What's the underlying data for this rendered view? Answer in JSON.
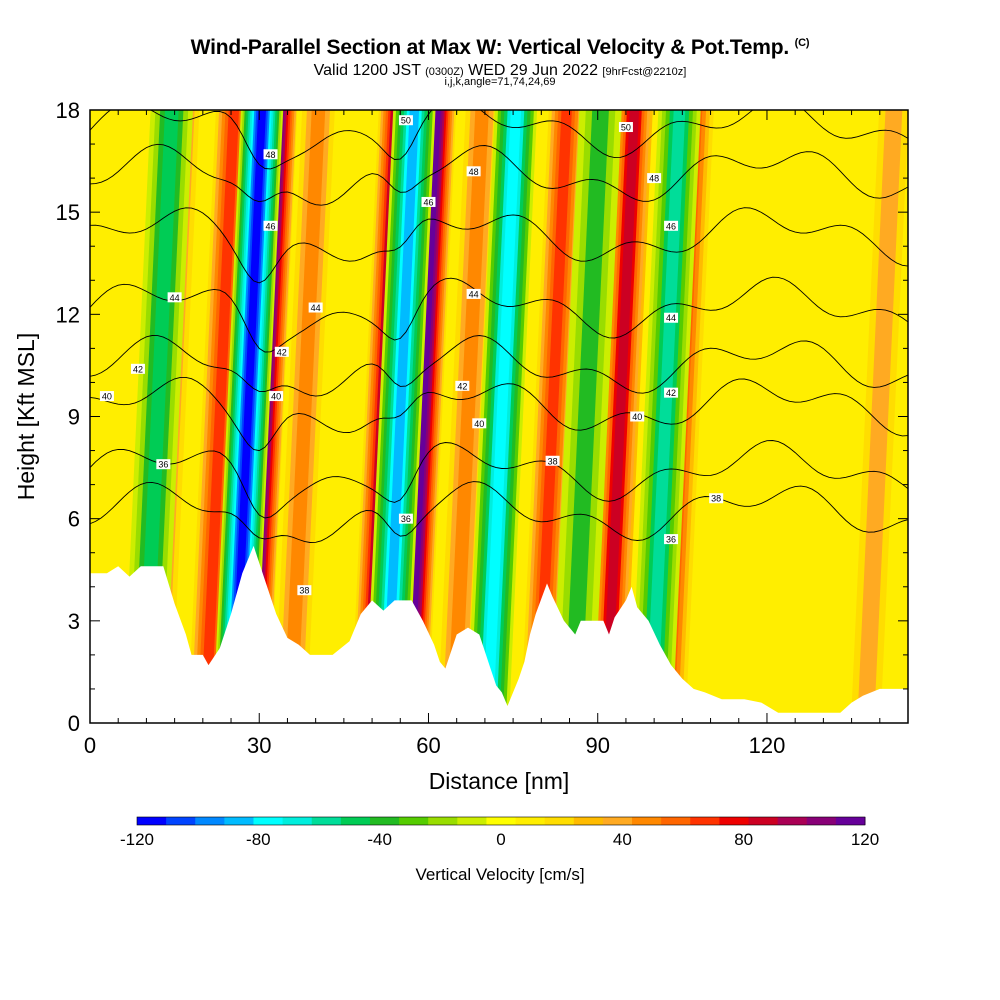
{
  "header": {
    "title": "Wind-Parallel Section at Max W: Vertical Velocity & Pot.Temp.",
    "title_mark": "(C)",
    "subtitle_valid": "Valid 1200 JST",
    "subtitle_z": "(0300Z)",
    "subtitle_date": "WED 29 Jun 2022",
    "subtitle_fcst": "[9hrFcst@2210z]",
    "params": "i,j,k,angle=71,74,24,69"
  },
  "chart_data": {
    "type": "heatmap",
    "xlabel": "Distance [nm]",
    "ylabel": "Height [Kft MSL]",
    "xlim": [
      0,
      145
    ],
    "ylim": [
      0,
      18
    ],
    "x_ticks": [
      0,
      30,
      60,
      90,
      120
    ],
    "y_ticks": [
      0,
      3,
      6,
      9,
      12,
      15,
      18
    ],
    "colorbar": {
      "label": "Vertical Velocity [cm/s]",
      "min": -120,
      "max": 120,
      "tick_values": [
        -120,
        -80,
        -40,
        0,
        40,
        80,
        120
      ],
      "tick_labels": [
        "-120",
        "-80",
        "-40",
        "0",
        "40",
        "80",
        "120"
      ],
      "colors": [
        "#0000ff",
        "#0044ff",
        "#0088ff",
        "#00bbff",
        "#00ffff",
        "#00eedd",
        "#00dd99",
        "#00cc55",
        "#22bb22",
        "#55cc00",
        "#99dd00",
        "#ccee00",
        "#ffff00",
        "#ffee00",
        "#ffdd00",
        "#ffbb00",
        "#ffaa22",
        "#ff8800",
        "#ff6600",
        "#ff3300",
        "#ee0000",
        "#cc0022",
        "#aa0055",
        "#880077",
        "#660099"
      ]
    },
    "updrafts": [
      {
        "x": 14,
        "w": 45
      },
      {
        "x": 23,
        "w": 70
      },
      {
        "x": 31,
        "w": 115
      },
      {
        "x": 38,
        "w": 45
      },
      {
        "x": 52,
        "w": 95
      },
      {
        "x": 59,
        "w": 115
      },
      {
        "x": 67,
        "w": 45
      },
      {
        "x": 82,
        "w": 70
      },
      {
        "x": 94,
        "w": 85
      },
      {
        "x": 105,
        "w": 55
      },
      {
        "x": 140,
        "w": 35
      }
    ],
    "downdrafts": [
      {
        "x": 12,
        "w": -45
      },
      {
        "x": 28,
        "w": -115
      },
      {
        "x": 55,
        "w": -85
      },
      {
        "x": 73,
        "w": -75
      },
      {
        "x": 88,
        "w": -35
      },
      {
        "x": 102,
        "w": -55
      }
    ],
    "theta_contours": [
      {
        "value": 36,
        "label": "36"
      },
      {
        "value": 38,
        "label": "38"
      },
      {
        "value": 40,
        "label": "40"
      },
      {
        "value": 42,
        "label": "42"
      },
      {
        "value": 44,
        "label": "44"
      },
      {
        "value": 46,
        "label": "46"
      },
      {
        "value": 48,
        "label": "48"
      },
      {
        "value": 50,
        "label": "50"
      }
    ],
    "contour_labels": [
      {
        "x": 3,
        "y": 9.6,
        "text": "40"
      },
      {
        "x": 8.5,
        "y": 10.4,
        "text": "42"
      },
      {
        "x": 15,
        "y": 12.5,
        "text": "44"
      },
      {
        "x": 13,
        "y": 7.6,
        "text": "36"
      },
      {
        "x": 32,
        "y": 16.7,
        "text": "48"
      },
      {
        "x": 32,
        "y": 14.6,
        "text": "46"
      },
      {
        "x": 40,
        "y": 12.2,
        "text": "44"
      },
      {
        "x": 34,
        "y": 10.9,
        "text": "42"
      },
      {
        "x": 33,
        "y": 9.6,
        "text": "40"
      },
      {
        "x": 38,
        "y": 3.9,
        "text": "38"
      },
      {
        "x": 56,
        "y": 17.7,
        "text": "50"
      },
      {
        "x": 60,
        "y": 15.3,
        "text": "46"
      },
      {
        "x": 68,
        "y": 16.2,
        "text": "48"
      },
      {
        "x": 68,
        "y": 12.6,
        "text": "44"
      },
      {
        "x": 66,
        "y": 9.9,
        "text": "42"
      },
      {
        "x": 69,
        "y": 8.8,
        "text": "40"
      },
      {
        "x": 56,
        "y": 6.0,
        "text": "36"
      },
      {
        "x": 82,
        "y": 7.7,
        "text": "38"
      },
      {
        "x": 95,
        "y": 17.5,
        "text": "50"
      },
      {
        "x": 100,
        "y": 16.0,
        "text": "48"
      },
      {
        "x": 103,
        "y": 14.6,
        "text": "46"
      },
      {
        "x": 103,
        "y": 11.9,
        "text": "44"
      },
      {
        "x": 103,
        "y": 9.7,
        "text": "42"
      },
      {
        "x": 97,
        "y": 9.0,
        "text": "40"
      },
      {
        "x": 111,
        "y": 6.6,
        "text": "38"
      },
      {
        "x": 103,
        "y": 5.4,
        "text": "36"
      }
    ],
    "terrain": [
      [
        0,
        4.4
      ],
      [
        3,
        4.4
      ],
      [
        5,
        4.6
      ],
      [
        7,
        4.3
      ],
      [
        9,
        4.6
      ],
      [
        13,
        4.6
      ],
      [
        15,
        3.5
      ],
      [
        17,
        2.6
      ],
      [
        18,
        2.0
      ],
      [
        20,
        2.0
      ],
      [
        21,
        1.7
      ],
      [
        23,
        2.2
      ],
      [
        25,
        3.2
      ],
      [
        27,
        4.4
      ],
      [
        29,
        5.2
      ],
      [
        31,
        4.2
      ],
      [
        33,
        3.2
      ],
      [
        35,
        2.5
      ],
      [
        37,
        2.3
      ],
      [
        39,
        2.0
      ],
      [
        43,
        2.0
      ],
      [
        46,
        2.4
      ],
      [
        48,
        3.2
      ],
      [
        50,
        3.6
      ],
      [
        52,
        3.3
      ],
      [
        54,
        3.6
      ],
      [
        57,
        3.6
      ],
      [
        59,
        3.0
      ],
      [
        61,
        2.3
      ],
      [
        62,
        1.8
      ],
      [
        63,
        1.6
      ],
      [
        65,
        2.6
      ],
      [
        67,
        2.8
      ],
      [
        69,
        2.6
      ],
      [
        71,
        1.6
      ],
      [
        72,
        1.1
      ],
      [
        73,
        0.9
      ],
      [
        74,
        0.5
      ],
      [
        76,
        1.3
      ],
      [
        77,
        1.8
      ],
      [
        78,
        2.6
      ],
      [
        79,
        3.2
      ],
      [
        81,
        4.1
      ],
      [
        82,
        3.7
      ],
      [
        84,
        3.0
      ],
      [
        86,
        2.6
      ],
      [
        87,
        3.0
      ],
      [
        91,
        3.0
      ],
      [
        92,
        2.6
      ],
      [
        93,
        3.1
      ],
      [
        95,
        3.6
      ],
      [
        96,
        4.0
      ],
      [
        97,
        3.4
      ],
      [
        99,
        3.0
      ],
      [
        101,
        2.3
      ],
      [
        103,
        1.7
      ],
      [
        105,
        1.3
      ],
      [
        107,
        1.0
      ],
      [
        109,
        0.9
      ],
      [
        112,
        0.7
      ],
      [
        116,
        0.7
      ],
      [
        119,
        0.6
      ],
      [
        122,
        0.3
      ],
      [
        133,
        0.3
      ],
      [
        135,
        0.6
      ],
      [
        137,
        0.8
      ],
      [
        140,
        1.0
      ],
      [
        145,
        1.0
      ]
    ]
  }
}
